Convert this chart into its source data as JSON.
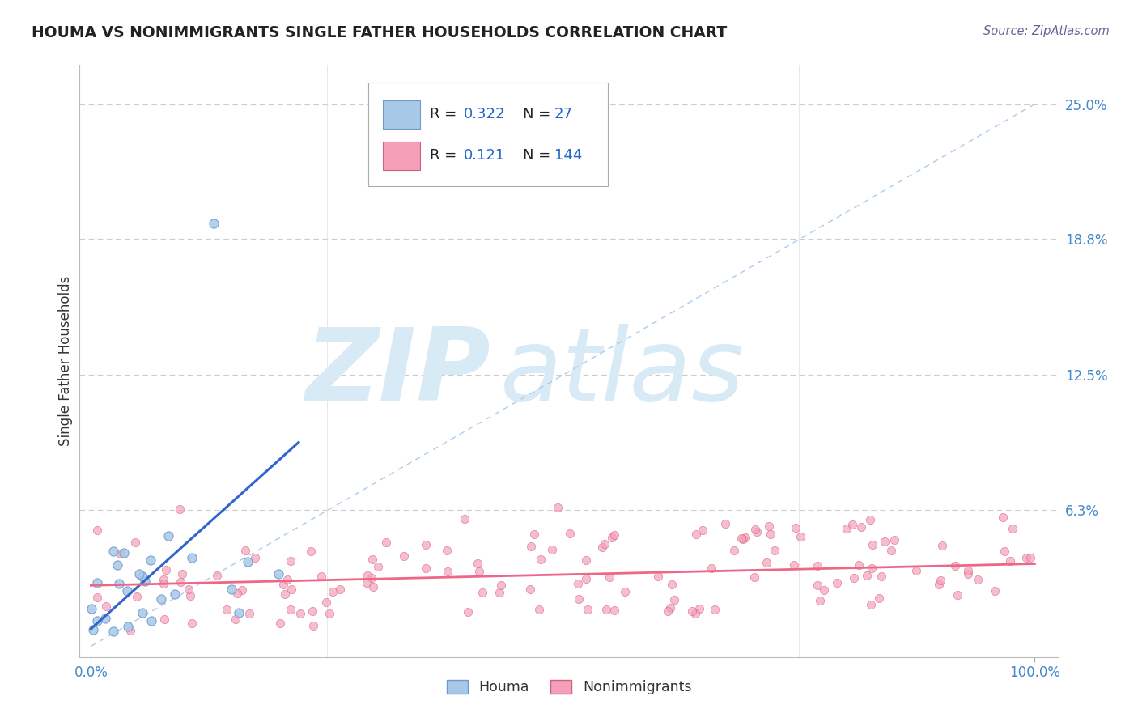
{
  "title": "HOUMA VS NONIMMIGRANTS SINGLE FATHER HOUSEHOLDS CORRELATION CHART",
  "source": "Source: ZipAtlas.com",
  "ylabel": "Single Father Households",
  "houma_R": 0.322,
  "houma_N": 27,
  "nonimm_R": 0.121,
  "nonimm_N": 144,
  "houma_color": "#A8C8E8",
  "nonimm_color": "#F4A0B8",
  "houma_edge": "#7099CC",
  "nonimm_edge": "#D06080",
  "trend_houma_color": "#3366CC",
  "trend_nonimm_color": "#EE6688",
  "diag_color": "#AACCEE",
  "grid_color": "#CCCCCC",
  "watermark": "ZIPatlas",
  "watermark_color": "#D8EAF5",
  "title_color": "#222222",
  "axis_label_color": "#4488CC",
  "legend_label_color": "#2266CC",
  "source_color": "#666699"
}
